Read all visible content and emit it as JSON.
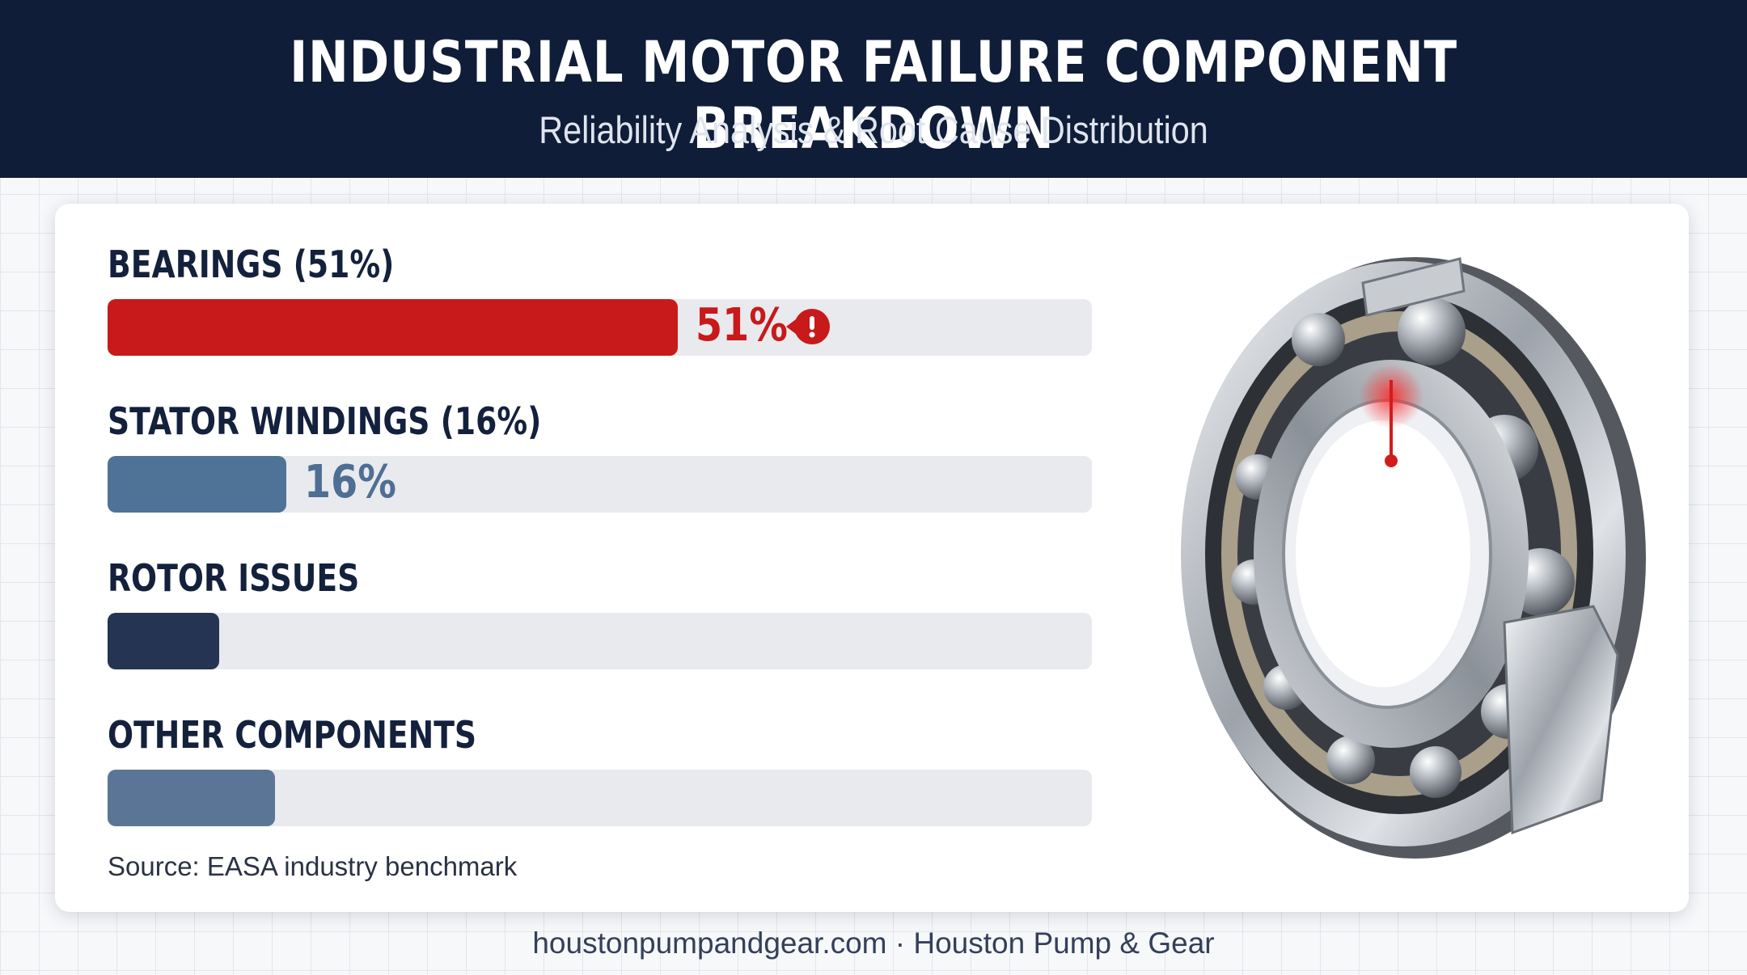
{
  "header": {
    "title": "INDUSTRIAL MOTOR FAILURE COMPONENT BREAKDOWN",
    "subtitle": "Reliability Analysis & Root Cause Distribution"
  },
  "chart_data": {
    "type": "bar",
    "orientation": "horizontal",
    "categories": [
      "BEARINGS (51%)",
      "STATOR WINDINGS (16%)",
      "ROTOR ISSUES",
      "OTHER COMPONENTS"
    ],
    "values": [
      51,
      16,
      10,
      15
    ],
    "value_labels": [
      "51%",
      "16%",
      "",
      ""
    ],
    "colors": [
      "#c81a1a",
      "#4f7397",
      "#253453",
      "#5b7597"
    ],
    "value_label_colors": [
      "#c81a1a",
      "#4f6e94",
      "",
      ""
    ],
    "xlim": [
      0,
      88
    ],
    "highlight": "BEARINGS (51%)",
    "source": "Source: EASA industry benchmark"
  },
  "illustration": {
    "icon": "ball-bearing-cutaway-icon"
  },
  "footer": {
    "text": "houstonpumpandgear.com · Houston Pump & Gear"
  }
}
